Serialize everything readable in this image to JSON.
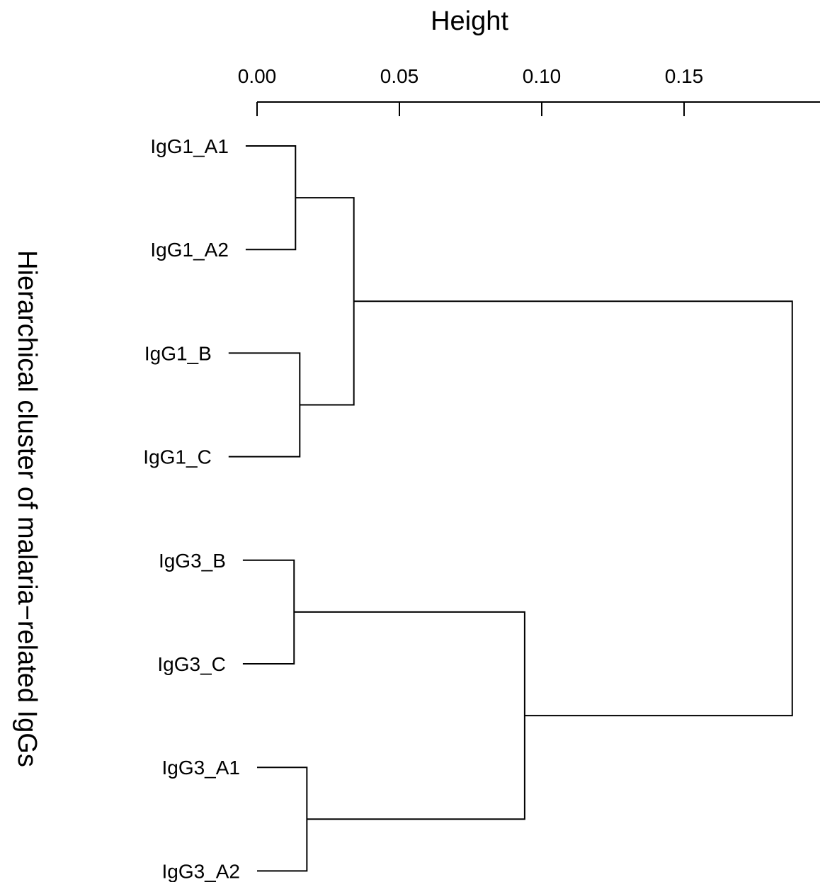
{
  "chart_data": {
    "type": "dendrogram",
    "title": "",
    "xlabel": "Height",
    "ylabel": "Hierarchical cluster of malaria−related IgGs",
    "x_axis_position": "top",
    "xlim": [
      0,
      0.19
    ],
    "xticks": [
      0.0,
      0.05,
      0.1,
      0.15
    ],
    "xtick_labels": [
      "0.00",
      "0.05",
      "0.10",
      "0.15"
    ],
    "grid": false,
    "leaves": [
      {
        "label": "IgG1_A1",
        "height": -0.004
      },
      {
        "label": "IgG1_A2",
        "height": -0.004
      },
      {
        "label": "IgG1_B",
        "height": -0.01
      },
      {
        "label": "IgG1_C",
        "height": -0.01
      },
      {
        "label": "IgG3_B",
        "height": -0.005
      },
      {
        "label": "IgG3_C",
        "height": -0.005
      },
      {
        "label": "IgG3_A1",
        "height": 0
      },
      {
        "label": "IgG3_A2",
        "height": 0
      }
    ],
    "merges": [
      {
        "left": 0,
        "right": 1,
        "height": 0.0135
      },
      {
        "left": 2,
        "right": 3,
        "height": 0.015
      },
      {
        "left": 4,
        "right": 5,
        "height": 0.013
      },
      {
        "left": 6,
        "right": 7,
        "height": 0.0175
      },
      {
        "left": 8,
        "right": 9,
        "height": 0.034
      },
      {
        "left": 10,
        "right": 11,
        "height": 0.094
      },
      {
        "left": 12,
        "right": 13,
        "height": 0.188
      }
    ]
  }
}
